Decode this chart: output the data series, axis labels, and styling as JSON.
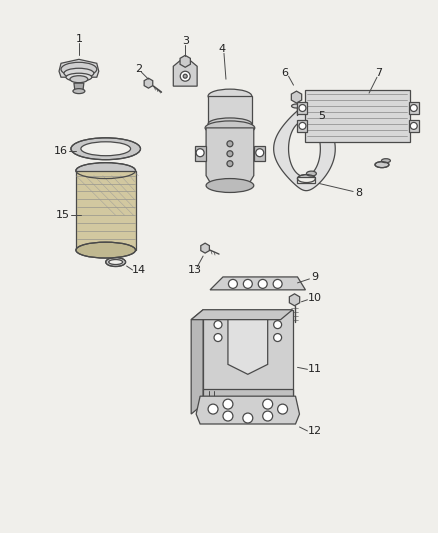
{
  "bg_color": "#f0efeb",
  "line_color": "#4a4a4a",
  "text_color": "#222222",
  "figsize": [
    4.38,
    5.33
  ],
  "dpi": 100
}
